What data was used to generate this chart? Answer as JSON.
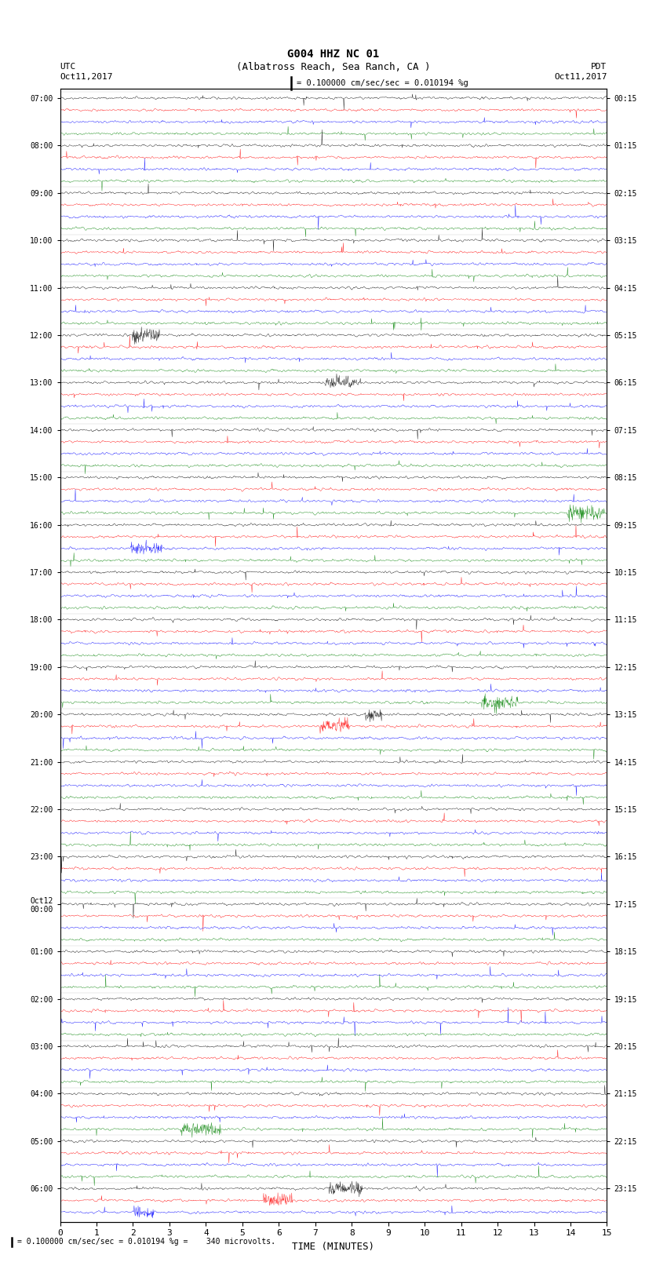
{
  "title_line1": "G004 HHZ NC 01",
  "title_line2": "(Albatross Reach, Sea Ranch, CA )",
  "scale_label": "= 0.100000 cm/sec/sec = 0.010194 %g",
  "bottom_label": "= 0.100000 cm/sec/sec = 0.010194 %g =    340 microvolts.",
  "xlabel": "TIME (MINUTES)",
  "left_date": "Oct11,2017",
  "right_date": "Oct11,2017",
  "left_tz": "UTC",
  "right_tz": "PDT",
  "background_color": "#ffffff",
  "trace_colors": [
    "black",
    "red",
    "blue",
    "green"
  ],
  "xlim": [
    0,
    15
  ],
  "xticks": [
    0,
    1,
    2,
    3,
    4,
    5,
    6,
    7,
    8,
    9,
    10,
    11,
    12,
    13,
    14,
    15
  ],
  "left_times": [
    "07:00",
    "",
    "",
    "",
    "08:00",
    "",
    "",
    "",
    "09:00",
    "",
    "",
    "",
    "10:00",
    "",
    "",
    "",
    "11:00",
    "",
    "",
    "",
    "12:00",
    "",
    "",
    "",
    "13:00",
    "",
    "",
    "",
    "14:00",
    "",
    "",
    "",
    "15:00",
    "",
    "",
    "",
    "16:00",
    "",
    "",
    "",
    "17:00",
    "",
    "",
    "",
    "18:00",
    "",
    "",
    "",
    "19:00",
    "",
    "",
    "",
    "20:00",
    "",
    "",
    "",
    "21:00",
    "",
    "",
    "",
    "22:00",
    "",
    "",
    "",
    "23:00",
    "",
    "",
    "",
    "Oct12\n00:00",
    "",
    "",
    "",
    "01:00",
    "",
    "",
    "",
    "02:00",
    "",
    "",
    "",
    "03:00",
    "",
    "",
    "",
    "04:00",
    "",
    "",
    "",
    "05:00",
    "",
    "",
    "",
    "06:00",
    "",
    ""
  ],
  "right_times": [
    "00:15",
    "",
    "",
    "",
    "01:15",
    "",
    "",
    "",
    "02:15",
    "",
    "",
    "",
    "03:15",
    "",
    "",
    "",
    "04:15",
    "",
    "",
    "",
    "05:15",
    "",
    "",
    "",
    "06:15",
    "",
    "",
    "",
    "07:15",
    "",
    "",
    "",
    "08:15",
    "",
    "",
    "",
    "09:15",
    "",
    "",
    "",
    "10:15",
    "",
    "",
    "",
    "11:15",
    "",
    "",
    "",
    "12:15",
    "",
    "",
    "",
    "13:15",
    "",
    "",
    "",
    "14:15",
    "",
    "",
    "",
    "15:15",
    "",
    "",
    "",
    "16:15",
    "",
    "",
    "",
    "17:15",
    "",
    "",
    "",
    "18:15",
    "",
    "",
    "",
    "19:15",
    "",
    "",
    "",
    "20:15",
    "",
    "",
    "",
    "21:15",
    "",
    "",
    "",
    "22:15",
    "",
    "",
    "",
    "23:15",
    "",
    ""
  ],
  "num_rows": 95,
  "noise_amplitude": 0.28,
  "spike_probability": 0.004,
  "spike_amplitude": 1.2,
  "seed": 42
}
